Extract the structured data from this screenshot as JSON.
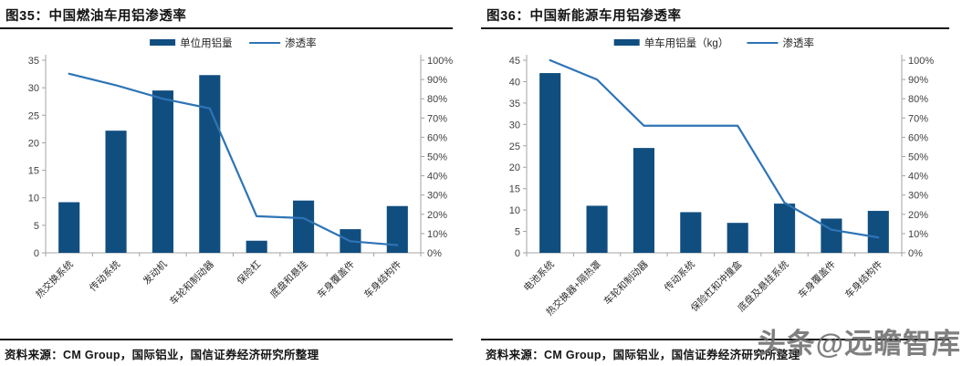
{
  "watermark": "头条@远瞻智库",
  "panels": [
    {
      "title": "图35：中国燃油车用铝渗透率",
      "source": "资料来源：CM Group，国际铝业，国信证券经济研究所整理"
    },
    {
      "title": "图36：中国新能源车用铝渗透率",
      "source": "资料来源：CM Group，国际铝业，国信证券经济研究所整理"
    }
  ],
  "chart_data": [
    {
      "type": "bar",
      "title": "图35：中国燃油车用铝渗透率",
      "legend_position": "top",
      "grid": false,
      "categories": [
        "热交换系统",
        "传动系统",
        "发动机",
        "车轮和制动器",
        "保险杠",
        "底盘和悬挂",
        "车身覆盖件",
        "车身结构件"
      ],
      "series": [
        {
          "name": "单位用铝量",
          "renderer": "bar",
          "axis": "left",
          "values": [
            9.2,
            22.2,
            29.5,
            32.3,
            2.2,
            9.5,
            4.3,
            8.5
          ]
        },
        {
          "name": "渗透率",
          "renderer": "line",
          "axis": "right",
          "values": [
            93,
            87,
            80,
            75,
            19,
            18,
            6,
            4
          ]
        }
      ],
      "left_axis": {
        "min": 0,
        "max": 35,
        "step": 5,
        "unit": ""
      },
      "right_axis": {
        "min": 0,
        "max": 100,
        "step": 10,
        "unit": "%"
      },
      "colors": {
        "bar": "#114e80",
        "line": "#2e74b5"
      }
    },
    {
      "type": "bar",
      "title": "图36：中国新能源车用铝渗透率",
      "legend_position": "top",
      "grid": false,
      "categories": [
        "电池系统",
        "热交换器+隔热罩",
        "车轮和制动器",
        "传动系统",
        "保险杠和冲撞盒",
        "底盘及悬挂系统",
        "车身覆盖件",
        "车身结构件"
      ],
      "series": [
        {
          "name": "单车用铝量（kg）",
          "renderer": "bar",
          "axis": "left",
          "values": [
            42,
            11,
            24.5,
            9.5,
            7,
            11.5,
            8,
            9.8
          ]
        },
        {
          "name": "渗透率",
          "renderer": "line",
          "axis": "right",
          "values": [
            100,
            90,
            66,
            66,
            66,
            26,
            12,
            8
          ]
        }
      ],
      "left_axis": {
        "min": 0,
        "max": 45,
        "step": 5,
        "unit": ""
      },
      "right_axis": {
        "min": 0,
        "max": 100,
        "step": 10,
        "unit": "%"
      },
      "colors": {
        "bar": "#114e80",
        "line": "#2e74b5"
      }
    }
  ]
}
